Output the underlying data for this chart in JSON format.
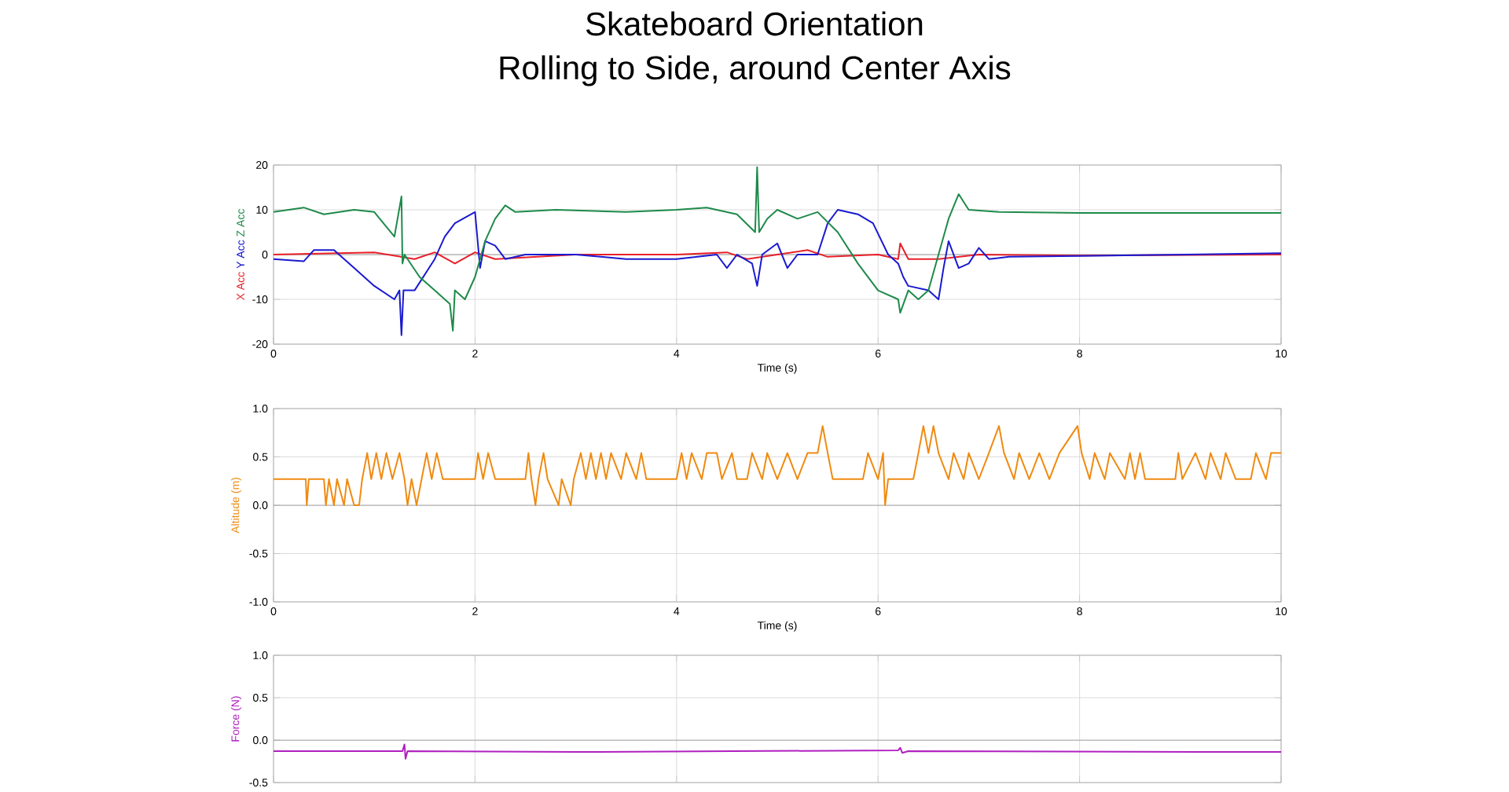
{
  "chart_data": [
    {
      "type": "line",
      "title": "Skateboard Orientation",
      "subtitle": "Rolling to Side, around Center Axis",
      "xlabel": "Time (s)",
      "xlim": [
        0,
        10
      ],
      "xticks": [
        0,
        2,
        4,
        6,
        8,
        10
      ],
      "ylim": [
        -20,
        20
      ],
      "yticks": [
        -20,
        -10,
        0,
        10,
        20
      ],
      "grid": true,
      "ref_lines": [
        {
          "axis": "y",
          "value": 0,
          "color": "#808080"
        }
      ],
      "series": [
        {
          "name": "X Acc",
          "color": "#e8202a",
          "x": [
            0,
            1,
            1.4,
            1.6,
            1.8,
            2,
            2.2,
            3,
            4,
            4.5,
            4.7,
            5,
            5.3,
            5.5,
            6,
            6.2,
            6.22,
            6.3,
            6.6,
            7,
            8,
            10
          ],
          "values": [
            0,
            0.5,
            -1,
            0.5,
            -2,
            0.5,
            -1,
            0,
            0,
            0.5,
            -1,
            0,
            1,
            -0.5,
            0,
            -1,
            2.5,
            -1,
            -1,
            0,
            -0.2,
            0
          ]
        },
        {
          "name": "Y Acc",
          "color": "#1a1ad0",
          "x": [
            0,
            0.3,
            0.4,
            0.6,
            0.8,
            1.0,
            1.2,
            1.25,
            1.27,
            1.29,
            1.4,
            1.6,
            1.7,
            1.8,
            2.0,
            2.05,
            2.1,
            2.2,
            2.3,
            2.5,
            3,
            3.5,
            4,
            4.4,
            4.5,
            4.6,
            4.75,
            4.8,
            4.85,
            5.0,
            5.1,
            5.2,
            5.4,
            5.5,
            5.6,
            5.8,
            5.95,
            6.1,
            6.2,
            6.25,
            6.3,
            6.5,
            6.6,
            6.65,
            6.7,
            6.8,
            6.9,
            7.0,
            7.1,
            7.3,
            8,
            10
          ],
          "values": [
            -1,
            -1.5,
            1,
            1,
            -3,
            -7,
            -10,
            -8,
            -18,
            -8,
            -8,
            -1,
            4,
            7,
            9.5,
            -3,
            3,
            2,
            -1,
            0,
            0,
            -1,
            -1,
            0,
            -3,
            0,
            -2,
            -7,
            0,
            2.5,
            -3,
            0,
            0,
            7,
            10,
            9,
            7,
            0,
            -2,
            -5,
            -7,
            -8,
            -10,
            -3,
            3,
            -3,
            -2,
            1.5,
            -1,
            -0.5,
            -0.3,
            0.3
          ]
        },
        {
          "name": "Z Acc",
          "color": "#1e8a4a",
          "x": [
            0,
            0.3,
            0.5,
            0.8,
            1.0,
            1.2,
            1.27,
            1.28,
            1.3,
            1.45,
            1.6,
            1.75,
            1.78,
            1.8,
            1.9,
            2.0,
            2.1,
            2.2,
            2.3,
            2.4,
            2.8,
            3.5,
            4.0,
            4.3,
            4.6,
            4.78,
            4.8,
            4.82,
            4.9,
            5.0,
            5.2,
            5.4,
            5.6,
            5.8,
            6.0,
            6.2,
            6.22,
            6.3,
            6.4,
            6.5,
            6.6,
            6.7,
            6.8,
            6.9,
            7.2,
            8,
            10
          ],
          "values": [
            9.5,
            10.5,
            9,
            10,
            9.5,
            4,
            13,
            -2,
            0,
            -5,
            -8,
            -11,
            -17,
            -8,
            -10,
            -5,
            3,
            8,
            11,
            9.5,
            10,
            9.5,
            10,
            10.5,
            9,
            5,
            19.5,
            5,
            8,
            10,
            8,
            9.5,
            5,
            -2,
            -8,
            -10,
            -13,
            -8,
            -10,
            -8,
            0,
            8,
            13.5,
            10,
            9.5,
            9.3,
            9.3
          ]
        }
      ]
    },
    {
      "type": "line",
      "xlabel": "Time (s)",
      "ylabel": "Altitude (m)",
      "xlim": [
        0,
        10
      ],
      "xticks": [
        0,
        2,
        4,
        6,
        8,
        10
      ],
      "ylim": [
        -1,
        1
      ],
      "yticks": [
        {
          "value": -1,
          "label": "-1.0"
        },
        -0.5,
        {
          "value": 0,
          "label": "0.0"
        },
        0.5,
        {
          "value": 1,
          "label": "1.0"
        }
      ],
      "grid": true,
      "ref_lines": [
        {
          "axis": "y",
          "value": 0,
          "color": "#808080"
        }
      ],
      "series": [
        {
          "color": "#f08a10",
          "x": [
            0,
            0.32,
            0.33,
            0.35,
            0.5,
            0.52,
            0.55,
            0.6,
            0.63,
            0.7,
            0.73,
            0.8,
            0.85,
            0.88,
            0.93,
            0.97,
            1.02,
            1.07,
            1.12,
            1.18,
            1.25,
            1.3,
            1.33,
            1.37,
            1.42,
            1.47,
            1.52,
            1.57,
            1.62,
            1.68,
            2.0,
            2.03,
            2.08,
            2.13,
            2.2,
            2.5,
            2.53,
            2.56,
            2.6,
            2.63,
            2.68,
            2.72,
            2.83,
            2.86,
            2.95,
            2.98,
            3.05,
            3.1,
            3.15,
            3.2,
            3.25,
            3.3,
            3.35,
            3.45,
            3.5,
            3.6,
            3.65,
            3.7,
            4.0,
            4.05,
            4.1,
            4.15,
            4.25,
            4.3,
            4.4,
            4.45,
            4.55,
            4.6,
            4.7,
            4.75,
            4.85,
            4.9,
            5.0,
            5.1,
            5.2,
            5.3,
            5.4,
            5.45,
            5.5,
            5.55,
            5.85,
            5.9,
            6.0,
            6.05,
            6.07,
            6.1,
            6.35,
            6.4,
            6.45,
            6.5,
            6.55,
            6.6,
            6.7,
            6.75,
            6.85,
            6.9,
            7.0,
            7.1,
            7.2,
            7.25,
            7.35,
            7.4,
            7.5,
            7.6,
            7.7,
            7.8,
            7.98,
            8.02,
            8.1,
            8.15,
            8.25,
            8.3,
            8.45,
            8.5,
            8.55,
            8.6,
            8.65,
            8.95,
            8.98,
            9.02,
            9.15,
            9.25,
            9.3,
            9.4,
            9.45,
            9.55,
            9.7,
            9.75,
            9.85,
            9.9,
            10
          ],
          "values": [
            0.27,
            0.27,
            0,
            0.27,
            0.27,
            0,
            0.27,
            0,
            0.27,
            0,
            0.27,
            0,
            0,
            0.27,
            0.54,
            0.27,
            0.54,
            0.27,
            0.54,
            0.27,
            0.54,
            0.27,
            0,
            0.27,
            0,
            0.27,
            0.54,
            0.27,
            0.54,
            0.27,
            0.27,
            0.54,
            0.27,
            0.54,
            0.27,
            0.27,
            0.54,
            0.27,
            0,
            0.27,
            0.54,
            0.27,
            0,
            0.27,
            0,
            0.27,
            0.54,
            0.27,
            0.54,
            0.27,
            0.54,
            0.27,
            0.54,
            0.27,
            0.54,
            0.27,
            0.54,
            0.27,
            0.27,
            0.54,
            0.27,
            0.54,
            0.27,
            0.54,
            0.54,
            0.27,
            0.54,
            0.27,
            0.27,
            0.54,
            0.27,
            0.54,
            0.27,
            0.54,
            0.27,
            0.54,
            0.54,
            0.82,
            0.54,
            0.27,
            0.27,
            0.54,
            0.27,
            0.54,
            0,
            0.27,
            0.27,
            0.54,
            0.82,
            0.54,
            0.82,
            0.54,
            0.27,
            0.54,
            0.27,
            0.54,
            0.27,
            0.54,
            0.82,
            0.54,
            0.27,
            0.54,
            0.27,
            0.54,
            0.27,
            0.54,
            0.82,
            0.54,
            0.27,
            0.54,
            0.27,
            0.54,
            0.27,
            0.54,
            0.27,
            0.54,
            0.27,
            0.27,
            0.54,
            0.27,
            0.54,
            0.27,
            0.54,
            0.27,
            0.54,
            0.27,
            0.27,
            0.54,
            0.27,
            0.54,
            0.54
          ]
        }
      ]
    },
    {
      "type": "line",
      "ylabel": "Force (N)",
      "xlim": [
        0,
        10
      ],
      "xticks": [
        0,
        2,
        4,
        6,
        8,
        10
      ],
      "ylim": [
        -0.5,
        1
      ],
      "yticks": [
        -0.5,
        {
          "value": 0,
          "label": "0.0"
        },
        0.5,
        {
          "value": 1,
          "label": "1.0"
        }
      ],
      "grid": true,
      "tick_labels": "y",
      "ref_lines": [
        {
          "axis": "y",
          "value": 0,
          "color": "#808080"
        }
      ],
      "series": [
        {
          "color": "#b020c0",
          "x": [
            0,
            1.28,
            1.3,
            1.31,
            1.33,
            3,
            6.2,
            6.22,
            6.24,
            6.3,
            10
          ],
          "values": [
            -0.13,
            -0.13,
            -0.05,
            -0.22,
            -0.13,
            -0.14,
            -0.12,
            -0.09,
            -0.15,
            -0.13,
            -0.14
          ]
        }
      ]
    }
  ]
}
